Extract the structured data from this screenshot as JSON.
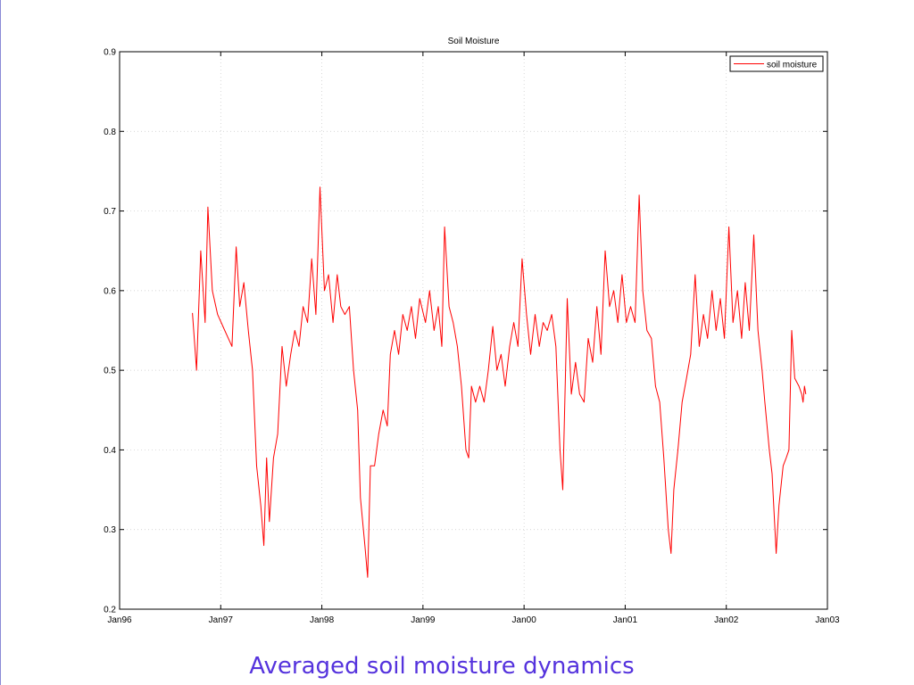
{
  "caption": "Averaged soil moisture dynamics",
  "chart_data": {
    "type": "line",
    "title": "Soil Moisture",
    "xlabel": "",
    "ylabel": "",
    "x_ticks": [
      "Jan96",
      "Jan97",
      "Jan98",
      "Jan99",
      "Jan00",
      "Jan01",
      "Jan02",
      "Jan03"
    ],
    "xlim": [
      "1996-01-01",
      "2003-01-01"
    ],
    "y_ticks": [
      "0.2",
      "0.3",
      "0.4",
      "0.5",
      "0.6",
      "0.7",
      "0.8",
      "0.9"
    ],
    "ylim": [
      0.2,
      0.9
    ],
    "grid": true,
    "legend_position": "top-right",
    "series": [
      {
        "name": "soil moisture",
        "color": "#ff0000",
        "points": [
          [
            "1996-09-20",
            0.572
          ],
          [
            "1996-10-05",
            0.5
          ],
          [
            "1996-10-20",
            0.65
          ],
          [
            "1996-11-05",
            0.56
          ],
          [
            "1996-11-15",
            0.705
          ],
          [
            "1996-12-01",
            0.6
          ],
          [
            "1996-12-20",
            0.57
          ],
          [
            "1997-01-15",
            0.55
          ],
          [
            "1997-02-10",
            0.53
          ],
          [
            "1997-02-25",
            0.655
          ],
          [
            "1997-03-10",
            0.58
          ],
          [
            "1997-03-25",
            0.61
          ],
          [
            "1997-04-10",
            0.55
          ],
          [
            "1997-04-25",
            0.5
          ],
          [
            "1997-05-10",
            0.38
          ],
          [
            "1997-05-25",
            0.33
          ],
          [
            "1997-06-05",
            0.28
          ],
          [
            "1997-06-15",
            0.39
          ],
          [
            "1997-06-25",
            0.31
          ],
          [
            "1997-07-10",
            0.39
          ],
          [
            "1997-07-25",
            0.42
          ],
          [
            "1997-08-10",
            0.53
          ],
          [
            "1997-08-25",
            0.48
          ],
          [
            "1997-09-10",
            0.52
          ],
          [
            "1997-09-25",
            0.55
          ],
          [
            "1997-10-10",
            0.53
          ],
          [
            "1997-10-25",
            0.58
          ],
          [
            "1997-11-10",
            0.56
          ],
          [
            "1997-11-25",
            0.64
          ],
          [
            "1997-12-10",
            0.57
          ],
          [
            "1997-12-25",
            0.73
          ],
          [
            "1998-01-10",
            0.6
          ],
          [
            "1998-01-25",
            0.62
          ],
          [
            "1998-02-10",
            0.56
          ],
          [
            "1998-02-25",
            0.62
          ],
          [
            "1998-03-10",
            0.58
          ],
          [
            "1998-03-25",
            0.57
          ],
          [
            "1998-04-10",
            0.58
          ],
          [
            "1998-04-25",
            0.5
          ],
          [
            "1998-05-10",
            0.45
          ],
          [
            "1998-05-20",
            0.34
          ],
          [
            "1998-06-05",
            0.28
          ],
          [
            "1998-06-15",
            0.24
          ],
          [
            "1998-06-25",
            0.38
          ],
          [
            "1998-07-10",
            0.38
          ],
          [
            "1998-07-25",
            0.42
          ],
          [
            "1998-08-10",
            0.45
          ],
          [
            "1998-08-25",
            0.43
          ],
          [
            "1998-09-05",
            0.52
          ],
          [
            "1998-09-20",
            0.55
          ],
          [
            "1998-10-05",
            0.52
          ],
          [
            "1998-10-20",
            0.57
          ],
          [
            "1998-11-05",
            0.55
          ],
          [
            "1998-11-20",
            0.58
          ],
          [
            "1998-12-05",
            0.54
          ],
          [
            "1998-12-20",
            0.59
          ],
          [
            "1999-01-10",
            0.56
          ],
          [
            "1999-01-25",
            0.6
          ],
          [
            "1999-02-10",
            0.55
          ],
          [
            "1999-02-25",
            0.58
          ],
          [
            "1999-03-10",
            0.53
          ],
          [
            "1999-03-20",
            0.68
          ],
          [
            "1999-04-05",
            0.58
          ],
          [
            "1999-04-20",
            0.56
          ],
          [
            "1999-05-05",
            0.53
          ],
          [
            "1999-05-20",
            0.48
          ],
          [
            "1999-06-05",
            0.4
          ],
          [
            "1999-06-15",
            0.39
          ],
          [
            "1999-06-25",
            0.48
          ],
          [
            "1999-07-10",
            0.46
          ],
          [
            "1999-07-25",
            0.48
          ],
          [
            "1999-08-10",
            0.46
          ],
          [
            "1999-08-25",
            0.5
          ],
          [
            "1999-09-10",
            0.555
          ],
          [
            "1999-09-25",
            0.5
          ],
          [
            "1999-10-10",
            0.52
          ],
          [
            "1999-10-25",
            0.48
          ],
          [
            "1999-11-10",
            0.53
          ],
          [
            "1999-11-25",
            0.56
          ],
          [
            "1999-12-10",
            0.53
          ],
          [
            "1999-12-25",
            0.64
          ],
          [
            "2000-01-10",
            0.57
          ],
          [
            "2000-01-25",
            0.52
          ],
          [
            "2000-02-10",
            0.57
          ],
          [
            "2000-02-25",
            0.53
          ],
          [
            "2000-03-10",
            0.56
          ],
          [
            "2000-03-25",
            0.55
          ],
          [
            "2000-04-10",
            0.57
          ],
          [
            "2000-04-25",
            0.53
          ],
          [
            "2000-05-10",
            0.4
          ],
          [
            "2000-05-20",
            0.35
          ],
          [
            "2000-06-05",
            0.59
          ],
          [
            "2000-06-20",
            0.47
          ],
          [
            "2000-07-05",
            0.51
          ],
          [
            "2000-07-20",
            0.47
          ],
          [
            "2000-08-05",
            0.46
          ],
          [
            "2000-08-20",
            0.54
          ],
          [
            "2000-09-05",
            0.51
          ],
          [
            "2000-09-20",
            0.58
          ],
          [
            "2000-10-05",
            0.52
          ],
          [
            "2000-10-20",
            0.65
          ],
          [
            "2000-11-05",
            0.58
          ],
          [
            "2000-11-20",
            0.6
          ],
          [
            "2000-12-05",
            0.56
          ],
          [
            "2000-12-20",
            0.62
          ],
          [
            "2001-01-05",
            0.56
          ],
          [
            "2001-01-20",
            0.58
          ],
          [
            "2001-02-05",
            0.56
          ],
          [
            "2001-02-20",
            0.72
          ],
          [
            "2001-03-05",
            0.6
          ],
          [
            "2001-03-20",
            0.55
          ],
          [
            "2001-04-05",
            0.54
          ],
          [
            "2001-04-20",
            0.48
          ],
          [
            "2001-05-05",
            0.46
          ],
          [
            "2001-05-20",
            0.39
          ],
          [
            "2001-06-05",
            0.3
          ],
          [
            "2001-06-15",
            0.27
          ],
          [
            "2001-06-25",
            0.35
          ],
          [
            "2001-07-10",
            0.4
          ],
          [
            "2001-07-25",
            0.46
          ],
          [
            "2001-08-10",
            0.49
          ],
          [
            "2001-08-25",
            0.52
          ],
          [
            "2001-09-10",
            0.62
          ],
          [
            "2001-09-25",
            0.53
          ],
          [
            "2001-10-10",
            0.57
          ],
          [
            "2001-10-25",
            0.54
          ],
          [
            "2001-11-10",
            0.6
          ],
          [
            "2001-11-25",
            0.55
          ],
          [
            "2001-12-10",
            0.59
          ],
          [
            "2001-12-25",
            0.54
          ],
          [
            "2002-01-10",
            0.68
          ],
          [
            "2002-01-25",
            0.56
          ],
          [
            "2002-02-10",
            0.6
          ],
          [
            "2002-02-25",
            0.54
          ],
          [
            "2002-03-10",
            0.61
          ],
          [
            "2002-03-25",
            0.55
          ],
          [
            "2002-04-10",
            0.67
          ],
          [
            "2002-04-25",
            0.55
          ],
          [
            "2002-05-10",
            0.5
          ],
          [
            "2002-05-20",
            0.46
          ],
          [
            "2002-06-05",
            0.4
          ],
          [
            "2002-06-15",
            0.37
          ],
          [
            "2002-06-30",
            0.27
          ],
          [
            "2002-07-10",
            0.33
          ],
          [
            "2002-07-25",
            0.38
          ],
          [
            "2002-08-05",
            0.39
          ],
          [
            "2002-08-15",
            0.4
          ],
          [
            "2002-08-25",
            0.55
          ],
          [
            "2002-09-05",
            0.49
          ],
          [
            "2002-09-20",
            0.48
          ],
          [
            "2002-09-30",
            0.47
          ],
          [
            "2002-10-05",
            0.46
          ],
          [
            "2002-10-10",
            0.48
          ],
          [
            "2002-10-15",
            0.47
          ]
        ]
      }
    ]
  }
}
